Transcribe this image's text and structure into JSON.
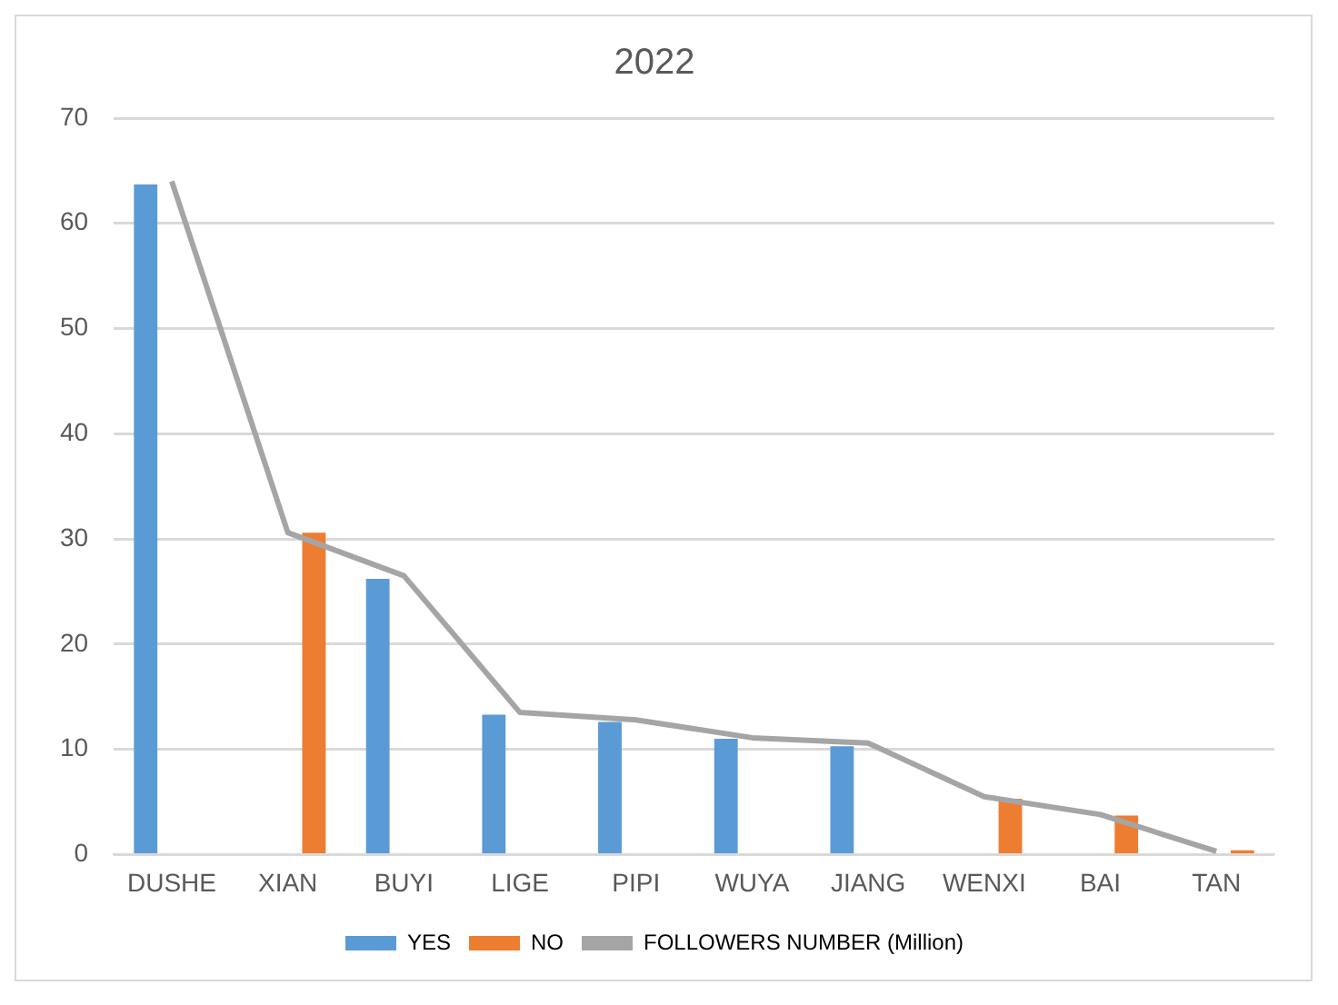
{
  "chart_data": {
    "type": "bar",
    "title": "2022",
    "categories": [
      "DUSHE",
      "XIAN",
      "BUYI",
      "LIGE",
      "PIPI",
      "WUYA",
      "JIANG",
      "WENXI",
      "BAI",
      "TAN"
    ],
    "series": [
      {
        "name": "YES",
        "color": "#5b9bd5",
        "values": [
          63.7,
          null,
          26.2,
          13.3,
          12.6,
          11,
          10.3,
          null,
          null,
          null
        ]
      },
      {
        "name": "NO",
        "color": "#ed7d31",
        "values": [
          null,
          30.6,
          null,
          null,
          null,
          null,
          null,
          5.3,
          3.7,
          0.4
        ]
      },
      {
        "name": "FOLLOWERS NUMBER (Million)",
        "type": "line",
        "color": "#a5a5a5",
        "marker": "none",
        "values": [
          64,
          30.6,
          26.5,
          13.5,
          12.8,
          11.1,
          10.6,
          5.5,
          3.8,
          0.3
        ]
      }
    ],
    "ylim": [
      0,
      70
    ],
    "yticks": [
      0,
      10,
      20,
      30,
      40,
      50,
      60,
      70
    ],
    "grid": "y",
    "legend": "bottom"
  }
}
